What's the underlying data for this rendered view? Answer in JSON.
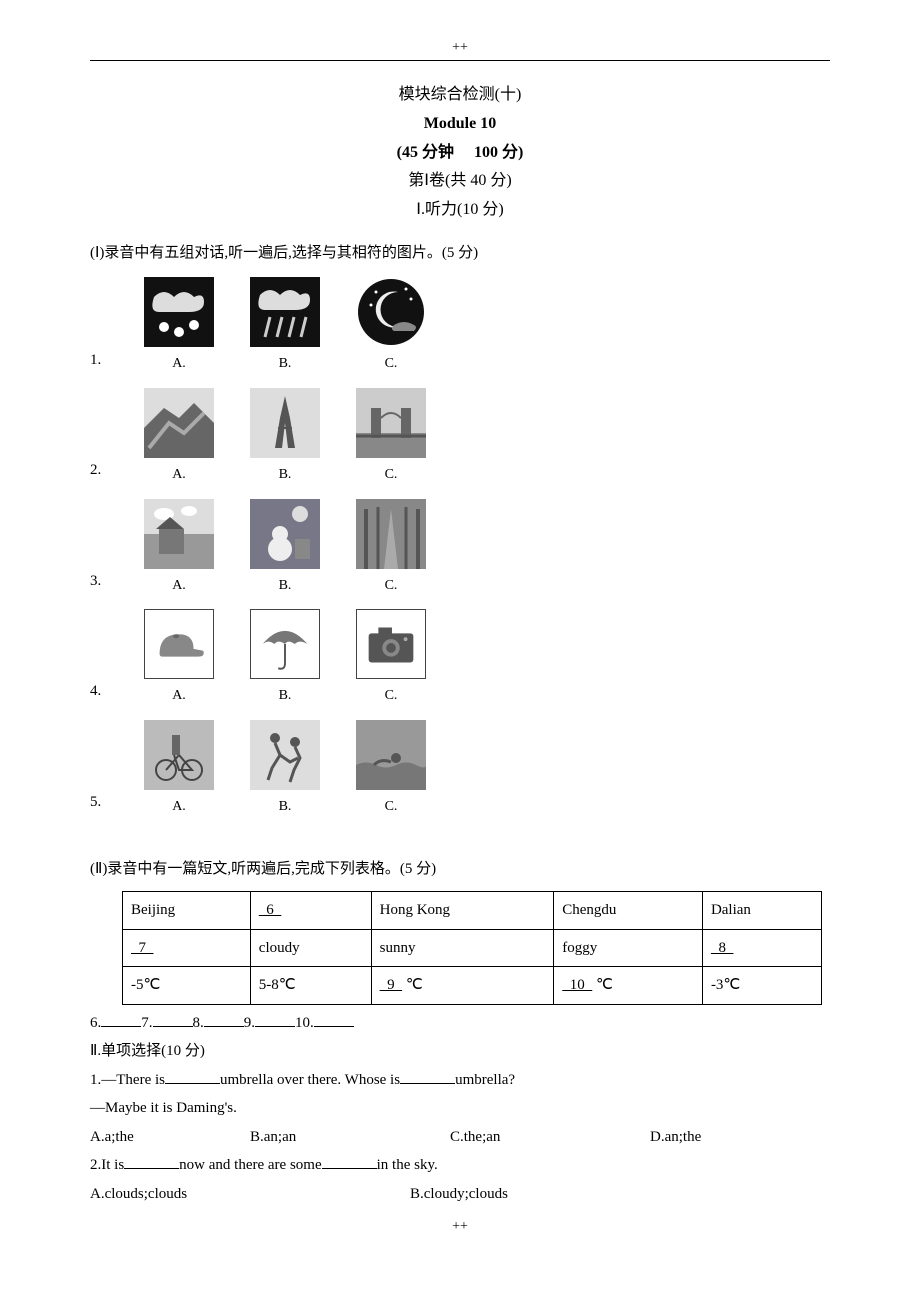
{
  "header_mark": "++",
  "footer_mark": "++",
  "title": {
    "line1": "模块综合检测(十)",
    "line2": "Module 10",
    "line3_a": "(45 分钟",
    "line3_b": "100 分)",
    "line4": "第Ⅰ卷(共 40 分)",
    "line5": "Ⅰ.听力(10 分)"
  },
  "section1_intro": "(Ⅰ)录音中有五组对话,听一遍后,选择与其相符的图片。(5 分)",
  "image_questions": [
    {
      "num": "1.",
      "options": [
        {
          "label": "A.",
          "desc": "snow",
          "bg": "#1a1a1a",
          "bordered": false
        },
        {
          "label": "B.",
          "desc": "rain",
          "bg": "#1a1a1a",
          "bordered": false
        },
        {
          "label": "C.",
          "desc": "moon-night",
          "bg": "#1a1a1a",
          "bordered": false
        }
      ]
    },
    {
      "num": "2.",
      "options": [
        {
          "label": "A.",
          "desc": "great-wall",
          "bg": "#888",
          "bordered": false
        },
        {
          "label": "B.",
          "desc": "eiffel-tower",
          "bg": "#aaa",
          "bordered": false
        },
        {
          "label": "C.",
          "desc": "tower-bridge",
          "bg": "#999",
          "bordered": false
        }
      ]
    },
    {
      "num": "3.",
      "options": [
        {
          "label": "A.",
          "desc": "hut-clouds",
          "bg": "#bbb",
          "bordered": false
        },
        {
          "label": "B.",
          "desc": "snowman-night",
          "bg": "#999",
          "bordered": false
        },
        {
          "label": "C.",
          "desc": "forest-path",
          "bg": "#777",
          "bordered": false
        }
      ]
    },
    {
      "num": "4.",
      "options": [
        {
          "label": "A.",
          "desc": "cap",
          "bg": "#fff",
          "bordered": true
        },
        {
          "label": "B.",
          "desc": "umbrella",
          "bg": "#fff",
          "bordered": true
        },
        {
          "label": "C.",
          "desc": "camera",
          "bg": "#fff",
          "bordered": true
        }
      ]
    },
    {
      "num": "5.",
      "options": [
        {
          "label": "A.",
          "desc": "bicycle",
          "bg": "#aaa",
          "bordered": false
        },
        {
          "label": "B.",
          "desc": "running",
          "bg": "#ccc",
          "bordered": false
        },
        {
          "label": "C.",
          "desc": "swimming",
          "bg": "#888",
          "bordered": false
        }
      ]
    }
  ],
  "section2_intro": "(Ⅱ)录音中有一篇短文,听两遍后,完成下列表格。(5 分)",
  "weather_table": {
    "row1": [
      "Beijing",
      "6",
      "Hong Kong",
      "Chengdu",
      "Dalian"
    ],
    "row1_underlined": [
      false,
      true,
      false,
      false,
      false
    ],
    "row2": [
      "7",
      "cloudy",
      "sunny",
      "foggy",
      "8"
    ],
    "row2_underlined": [
      true,
      false,
      false,
      false,
      true
    ],
    "row3": [
      "-5℃",
      "5-8℃",
      "9",
      "10",
      "-3℃"
    ],
    "row3_underlined": [
      false,
      false,
      true,
      true,
      false
    ],
    "row3_suffix": [
      "",
      "",
      "℃",
      "℃",
      ""
    ]
  },
  "blanks_line": {
    "items": [
      "6.",
      "7.",
      "8.",
      "9.",
      "10."
    ]
  },
  "section_ii_title": "Ⅱ.单项选择(10 分)",
  "q1": {
    "stem_a": "1.—There is",
    "stem_b": "umbrella over there. Whose is",
    "stem_c": "umbrella?",
    "reply": "—Maybe it is Daming's.",
    "options": {
      "A": "A.a;the",
      "B": "B.an;an",
      "C": "C.the;an",
      "D": "D.an;the"
    }
  },
  "q2": {
    "stem_a": "2.It is",
    "stem_b": "now and there are some",
    "stem_c": "in the sky.",
    "options": {
      "A": "A.clouds;clouds",
      "B": "B.cloudy;clouds"
    }
  },
  "colors": {
    "text": "#000000",
    "background": "#ffffff",
    "border": "#000000"
  }
}
